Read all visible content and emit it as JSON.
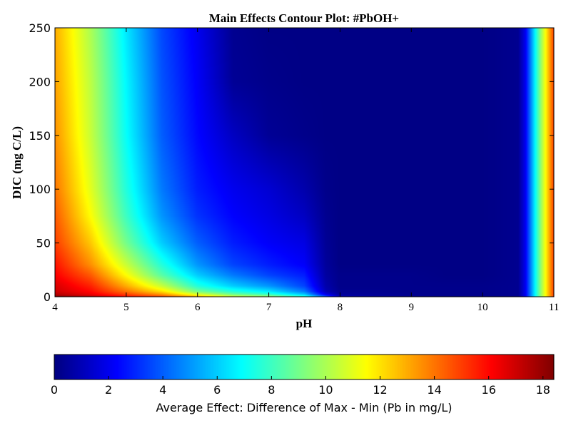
{
  "chart_data": {
    "type": "heatmap",
    "subtype": "filled-contour",
    "title": "Main Effects Contour Plot: #PbOH+",
    "xlabel": "pH",
    "ylabel": "DIC (mg C/L)",
    "xlim": [
      4,
      11
    ],
    "ylim": [
      0,
      250
    ],
    "x_ticks": [
      "4",
      "5",
      "6",
      "7",
      "8",
      "9",
      "10",
      "11"
    ],
    "y_ticks": [
      "0",
      "50",
      "100",
      "150",
      "200",
      "250"
    ],
    "colorbar": {
      "label": "Average Effect: Difference of Max - Min (Pb in mg/L)",
      "range": [
        0,
        18.4
      ],
      "ticks": [
        "0",
        "2",
        "4",
        "6",
        "8",
        "10",
        "12",
        "14",
        "16",
        "18"
      ],
      "colormap": "jet",
      "orientation": "horizontal"
    },
    "grid_x": [
      4.0,
      4.5,
      5.0,
      5.5,
      6.0,
      6.5,
      7.0,
      7.5,
      7.8,
      8.0,
      8.5,
      9.0,
      9.5,
      10.0,
      10.5,
      10.6,
      10.8,
      11.0
    ],
    "grid_y": [
      0,
      2,
      5,
      10,
      20,
      30,
      50,
      75,
      100,
      150,
      200,
      250
    ],
    "z": [
      [
        18.4,
        17.5,
        16.0,
        15.0,
        13.0,
        11.0,
        10.0,
        8.0,
        4.0,
        1.0,
        0.5,
        0.3,
        0.2,
        0.2,
        0.3,
        2.0,
        9.0,
        15.0
      ],
      [
        17.5,
        16.5,
        15.0,
        13.5,
        11.0,
        9.0,
        8.0,
        6.0,
        2.0,
        0.5,
        0.4,
        0.3,
        0.2,
        0.2,
        0.3,
        2.0,
        9.0,
        15.0
      ],
      [
        17.0,
        16.0,
        14.0,
        12.0,
        9.0,
        7.5,
        6.5,
        4.5,
        1.0,
        0.3,
        0.3,
        0.2,
        0.2,
        0.2,
        0.3,
        2.0,
        9.0,
        15.0
      ],
      [
        16.8,
        15.5,
        13.0,
        10.5,
        7.5,
        6.0,
        5.0,
        3.5,
        0.8,
        0.2,
        0.2,
        0.2,
        0.2,
        0.2,
        0.3,
        2.0,
        9.0,
        15.0
      ],
      [
        16.2,
        14.5,
        11.5,
        8.5,
        6.0,
        4.5,
        3.5,
        2.8,
        0.6,
        0.2,
        0.2,
        0.2,
        0.1,
        0.1,
        0.3,
        2.0,
        9.0,
        15.0
      ],
      [
        15.8,
        13.5,
        10.5,
        7.5,
        5.0,
        3.5,
        2.8,
        2.2,
        0.5,
        0.1,
        0.1,
        0.1,
        0.1,
        0.1,
        0.3,
        2.0,
        9.0,
        15.0
      ],
      [
        15.0,
        12.5,
        9.0,
        6.0,
        4.0,
        2.8,
        2.2,
        1.8,
        0.4,
        0.1,
        0.1,
        0.1,
        0.1,
        0.1,
        0.3,
        2.0,
        9.0,
        15.0
      ],
      [
        14.5,
        11.5,
        8.0,
        5.0,
        3.2,
        2.3,
        1.8,
        1.2,
        0.3,
        0.1,
        0.1,
        0.1,
        0.1,
        0.1,
        0.3,
        2.0,
        9.0,
        15.0
      ],
      [
        14.0,
        11.0,
        7.5,
        4.5,
        2.8,
        2.0,
        1.5,
        0.8,
        0.2,
        0.1,
        0.1,
        0.1,
        0.1,
        0.1,
        0.3,
        2.0,
        9.0,
        15.0
      ],
      [
        13.5,
        10.5,
        7.0,
        4.0,
        2.4,
        1.2,
        0.4,
        0.2,
        0.1,
        0.1,
        0.1,
        0.1,
        0.1,
        0.1,
        0.3,
        2.0,
        9.0,
        15.0
      ],
      [
        13.2,
        10.3,
        6.8,
        3.8,
        2.2,
        0.4,
        0.2,
        0.1,
        0.1,
        0.1,
        0.1,
        0.1,
        0.1,
        0.1,
        0.3,
        2.0,
        9.0,
        15.0
      ],
      [
        13.0,
        10.0,
        6.5,
        3.6,
        2.0,
        0.3,
        0.1,
        0.1,
        0.1,
        0.1,
        0.1,
        0.1,
        0.1,
        0.1,
        0.3,
        2.0,
        9.0,
        15.0
      ]
    ]
  }
}
